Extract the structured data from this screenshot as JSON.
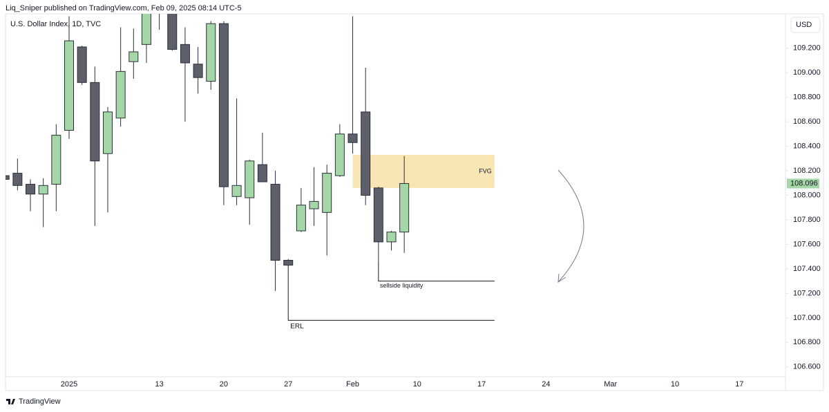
{
  "header": {
    "text": "Liq_Sniper published on TradingView.com, Feb 09, 2025 08:14 UTC-5"
  },
  "footer": {
    "brand": "TradingView"
  },
  "chart_data": {
    "type": "candlestick",
    "title": "U.S. Dollar Index, 1D, TVC",
    "currency": "USD",
    "up_color": "#a5d6a7",
    "down_color": "#5d606b",
    "border_color": "#2a2e39",
    "categories": [
      null,
      null,
      null,
      null,
      null,
      "2025",
      null,
      null,
      null,
      null,
      null,
      null,
      "13",
      null,
      null,
      null,
      null,
      "20",
      null,
      null,
      null,
      null,
      "27",
      null,
      null,
      null,
      null,
      "Feb",
      null,
      null,
      null,
      null,
      "10",
      null,
      null,
      null,
      null,
      "17",
      null,
      null,
      null,
      null,
      "24",
      null,
      null,
      null,
      null,
      "Mar",
      null,
      null,
      null,
      null,
      "10",
      null,
      null,
      null,
      null,
      "17",
      null,
      null,
      null
    ],
    "open": [
      108.16,
      108.18,
      108.09,
      108.01,
      108.09,
      108.53,
      109.21,
      108.92,
      108.34,
      108.63,
      109.09,
      109.23,
      109.87,
      109.55,
      109.23,
      109.07,
      108.93,
      109.4,
      107.99,
      107.98,
      108.25,
      108.09,
      107.47,
      107.71,
      107.89,
      107.86,
      108.16,
      108.5,
      108.68,
      108.06,
      107.62,
      107.7,
      null,
      null,
      null,
      null,
      null,
      null,
      null,
      null,
      null,
      null,
      null,
      null,
      null,
      null,
      null,
      null,
      null,
      null,
      null,
      null,
      null,
      null,
      null,
      null,
      null,
      null,
      null,
      null,
      null
    ],
    "high": [
      108.17,
      108.3,
      108.13,
      108.14,
      108.58,
      109.46,
      109.22,
      109.05,
      108.72,
      109.37,
      109.36,
      109.8,
      110.17,
      109.7,
      109.37,
      109.21,
      109.42,
      109.42,
      108.79,
      108.29,
      108.51,
      108.2,
      107.48,
      108.06,
      108.23,
      108.25,
      108.58,
      109.46,
      109.04,
      108.07,
      107.71,
      108.32,
      null,
      null,
      null,
      null,
      null,
      null,
      null,
      null,
      null,
      null,
      null,
      null,
      null,
      null,
      null,
      null,
      null,
      null,
      null,
      null,
      null,
      null,
      null,
      null,
      null,
      null,
      null,
      null,
      null
    ],
    "low": [
      108.11,
      108.04,
      107.87,
      107.74,
      107.87,
      108.46,
      108.9,
      107.75,
      107.86,
      108.56,
      108.95,
      109.08,
      109.35,
      109.18,
      108.6,
      108.83,
      108.86,
      107.92,
      107.92,
      107.76,
      108.11,
      107.22,
      107.43,
      107.7,
      107.75,
      107.51,
      108.15,
      108.34,
      107.92,
      107.46,
      107.55,
      107.53,
      null,
      null,
      null,
      null,
      null,
      null,
      null,
      null,
      null,
      null,
      null,
      null,
      null,
      null,
      null,
      null,
      null,
      null,
      null,
      null,
      null,
      null,
      null,
      null,
      null,
      null,
      null,
      null,
      null
    ],
    "close": [
      108.13,
      108.08,
      108.01,
      108.08,
      108.49,
      109.26,
      108.92,
      108.28,
      108.68,
      109.01,
      109.17,
      109.65,
      109.55,
      109.19,
      109.08,
      108.96,
      109.4,
      108.07,
      108.08,
      108.28,
      108.11,
      107.47,
      107.43,
      107.92,
      107.95,
      108.18,
      108.5,
      108.43,
      108.0,
      107.62,
      107.7,
      108.096,
      null,
      null,
      null,
      null,
      null,
      null,
      null,
      null,
      null,
      null,
      null,
      null,
      null,
      null,
      null,
      null,
      null,
      null,
      null,
      null,
      null,
      null,
      null,
      null,
      null,
      null,
      null,
      null,
      null
    ],
    "last_price": 108.096,
    "ylim": [
      106.52,
      109.48
    ],
    "yticks": [
      {
        "value": 106.6,
        "label": "106.600"
      },
      {
        "value": 106.8,
        "label": "106.800"
      },
      {
        "value": 107.0,
        "label": "107.000"
      },
      {
        "value": 107.2,
        "label": "107.200"
      },
      {
        "value": 107.4,
        "label": "107.400"
      },
      {
        "value": 107.6,
        "label": "107.600"
      },
      {
        "value": 107.8,
        "label": "107.800"
      },
      {
        "value": 108.0,
        "label": "108.000"
      },
      {
        "value": 108.2,
        "label": "108.200"
      },
      {
        "value": 108.4,
        "label": "108.400"
      },
      {
        "value": 108.6,
        "label": "108.600"
      },
      {
        "value": 108.8,
        "label": "108.800"
      },
      {
        "value": 109.0,
        "label": "109.000"
      },
      {
        "value": 109.2,
        "label": "109.200"
      }
    ],
    "grid": false,
    "annotations": {
      "fvg": {
        "label": "FVG",
        "range": [
          108.06,
          108.33
        ],
        "color": "#f8e6b5"
      },
      "sellside": {
        "label": "sellside liquidity",
        "value": 107.3
      },
      "erl": {
        "label": "ERL",
        "value": 106.98
      }
    }
  }
}
